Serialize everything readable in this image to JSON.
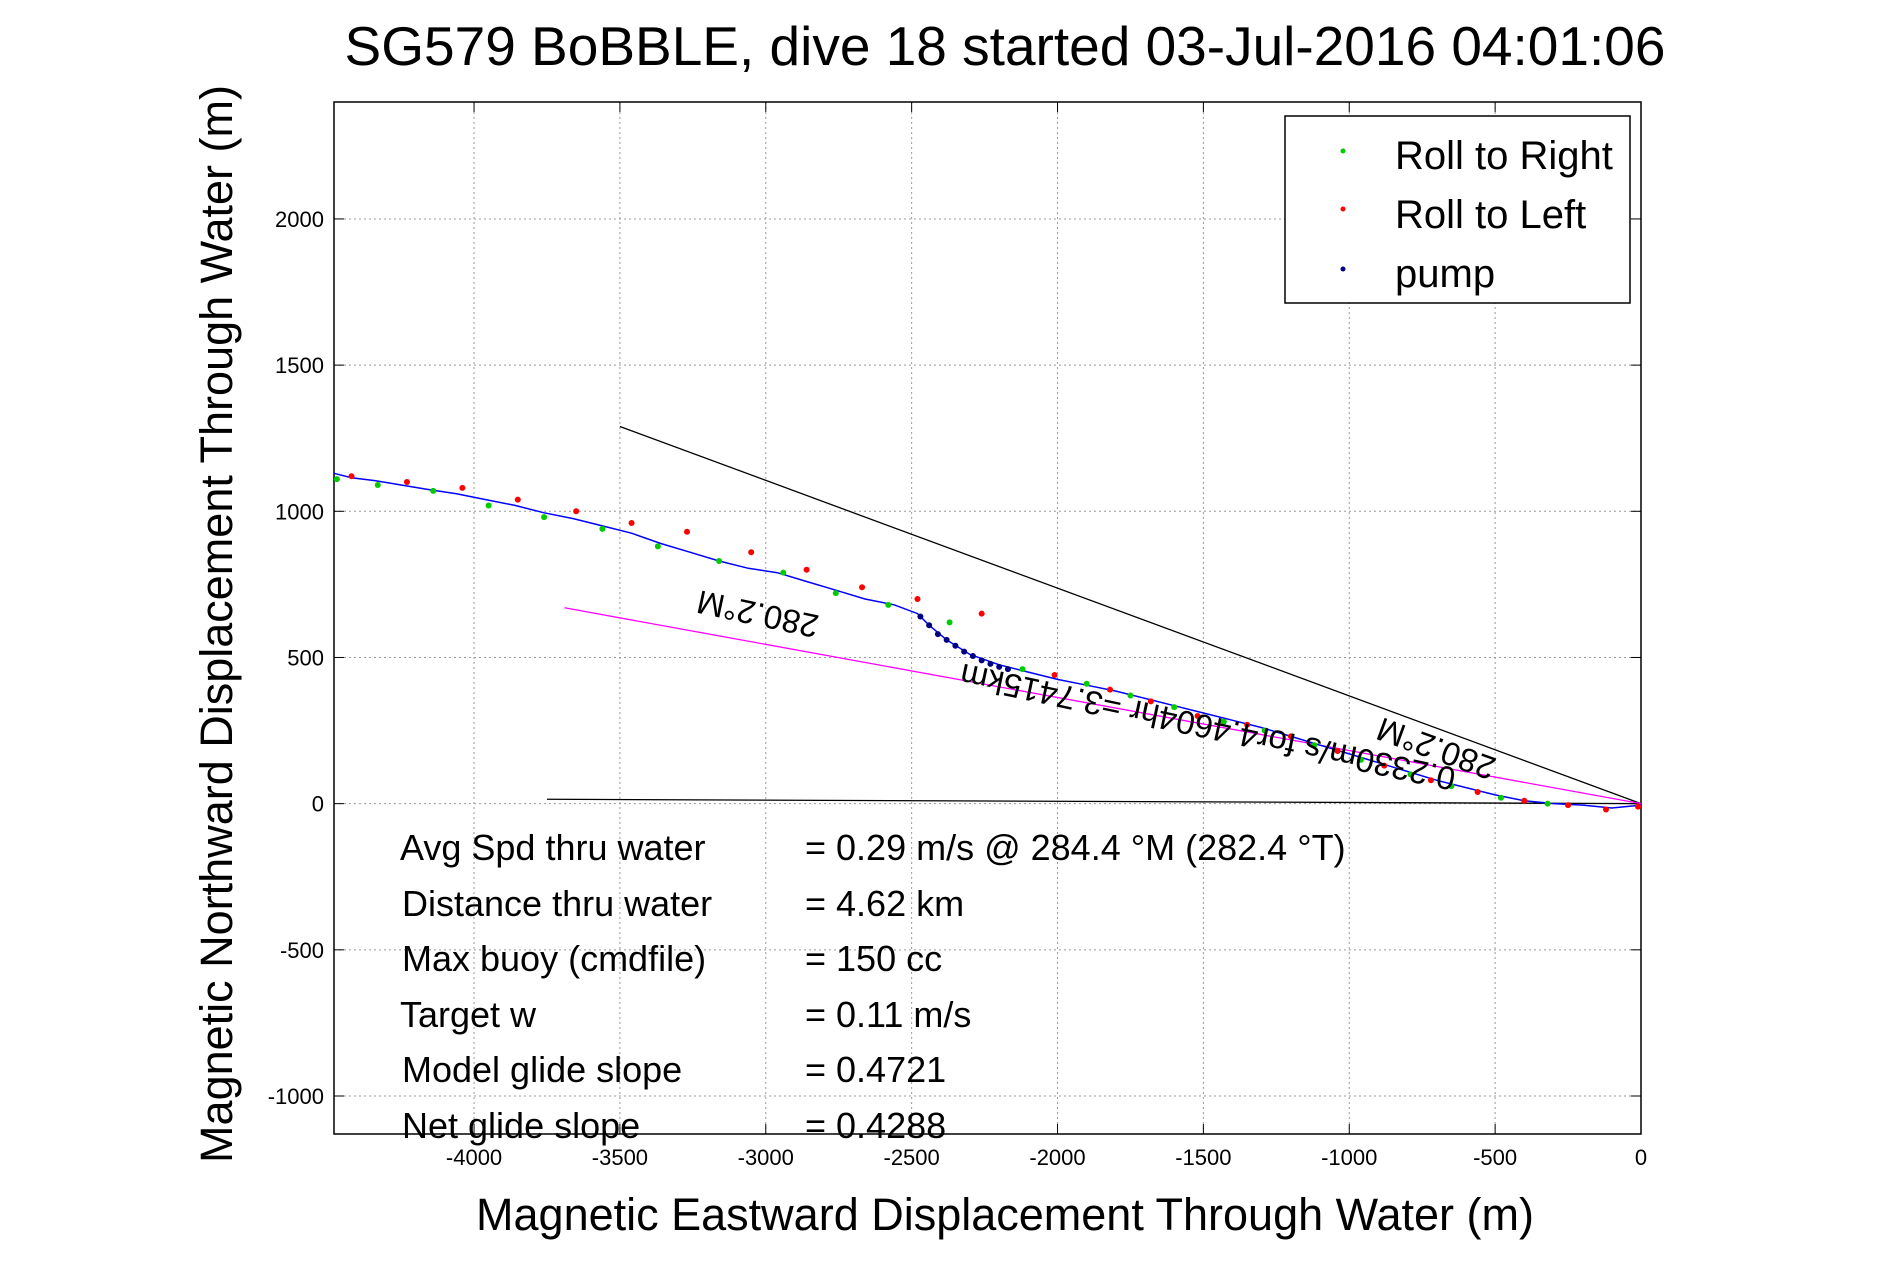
{
  "chart_data": {
    "type": "scatter",
    "title": "SG579 BoBBLE, dive 18 started 03-Jul-2016 04:01:06",
    "xlabel": "Magnetic Eastward Displacement Through Water (m)",
    "ylabel": "Magnetic Northward Displacement Through Water (m)",
    "xlim": [
      -4480,
      0
    ],
    "ylim": [
      -1130,
      2400
    ],
    "xticks": [
      -4000,
      -3500,
      -3000,
      -2500,
      -2000,
      -1500,
      -1000,
      -500,
      0
    ],
    "yticks": [
      -1000,
      -500,
      0,
      500,
      1000,
      1500,
      2000
    ],
    "grid": true,
    "legend_position": "top-right",
    "series": [
      {
        "name": "Roll to Right",
        "color": "#00cc00",
        "x": [
          -4470,
          -4330,
          -4140,
          -3950,
          -3760,
          -3560,
          -3370,
          -3160,
          -2940,
          -2760,
          -2580,
          -2370,
          -2120,
          -1900,
          -1750,
          -1600,
          -1430,
          -1290,
          -1120,
          -960,
          -790,
          -650,
          -480,
          -320
        ],
        "y": [
          1110,
          1090,
          1070,
          1020,
          980,
          940,
          880,
          830,
          790,
          720,
          680,
          620,
          460,
          410,
          370,
          330,
          280,
          250,
          200,
          150,
          100,
          60,
          20,
          0
        ]
      },
      {
        "name": "Roll to Left",
        "color": "#ff0000",
        "x": [
          -4420,
          -4230,
          -4040,
          -3850,
          -3650,
          -3460,
          -3270,
          -3050,
          -2860,
          -2670,
          -2480,
          -2260,
          -2010,
          -1820,
          -1680,
          -1520,
          -1350,
          -1200,
          -1040,
          -880,
          -720,
          -560,
          -400,
          -250,
          -120,
          -10
        ],
        "y": [
          1120,
          1100,
          1080,
          1040,
          1000,
          960,
          930,
          860,
          800,
          740,
          700,
          650,
          440,
          390,
          350,
          300,
          270,
          230,
          180,
          130,
          80,
          40,
          10,
          -5,
          -20,
          -10
        ]
      },
      {
        "name": "pump",
        "color": "#000080",
        "x": [
          -2470,
          -2440,
          -2410,
          -2380,
          -2350,
          -2320,
          -2290,
          -2260,
          -2230,
          -2200,
          -2170
        ],
        "y": [
          640,
          610,
          580,
          560,
          540,
          520,
          505,
          490,
          478,
          468,
          460
        ]
      }
    ],
    "trajectory": {
      "color": "#0000ff",
      "x": [
        -4480,
        -4420,
        -4340,
        -4250,
        -4160,
        -4060,
        -3960,
        -3860,
        -3760,
        -3660,
        -3560,
        -3460,
        -3360,
        -3260,
        -3160,
        -3060,
        -2960,
        -2860,
        -2760,
        -2660,
        -2560,
        -2480,
        -2440,
        -2380,
        -2300,
        -2200,
        -2100,
        -2000,
        -1900,
        -1800,
        -1700,
        -1600,
        -1500,
        -1400,
        -1300,
        -1200,
        -1100,
        -1000,
        -900,
        -800,
        -700,
        -600,
        -500,
        -400,
        -300,
        -200,
        -100,
        0
      ],
      "y": [
        1130,
        1115,
        1105,
        1090,
        1075,
        1060,
        1040,
        1020,
        995,
        975,
        950,
        925,
        890,
        860,
        830,
        805,
        790,
        760,
        730,
        700,
        680,
        650,
        610,
        560,
        510,
        475,
        450,
        425,
        405,
        385,
        360,
        335,
        310,
        285,
        260,
        230,
        200,
        170,
        140,
        110,
        80,
        55,
        30,
        10,
        0,
        -5,
        -15,
        -5
      ]
    },
    "reference_lines": [
      {
        "color": "#000000",
        "x": [
          -3500,
          0
        ],
        "y": [
          1290,
          0
        ]
      },
      {
        "color": "#000000",
        "x": [
          -3750,
          0
        ],
        "y": [
          15,
          0
        ]
      },
      {
        "color": "#ff00ff",
        "x": [
          -3690,
          0
        ],
        "y": [
          670,
          0
        ]
      }
    ],
    "annotations": [
      "280.2°M",
      "0.2330m/s for4.4604hr =3.7415km",
      "280.2°M"
    ],
    "stats": [
      {
        "label": "Avg Spd thru water",
        "value": "=  0.29 m/s @ 284.4 °M (282.4 °T)"
      },
      {
        "label": "Distance thru water",
        "value": "=  4.62 km"
      },
      {
        "label": "Max buoy (cmdfile)",
        "value": "= 150 cc"
      },
      {
        "label": "Target w",
        "value": "= 0.11 m/s"
      },
      {
        "label": "Model glide slope",
        "value": "= 0.4721"
      },
      {
        "label": "Net glide slope",
        "value": "= 0.4288"
      }
    ]
  }
}
